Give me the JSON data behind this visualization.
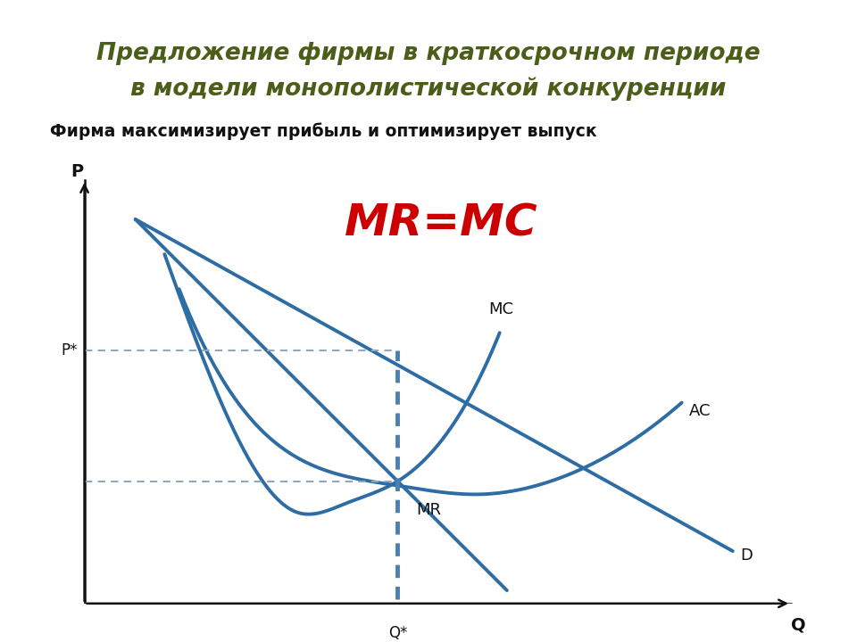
{
  "title_line1": "Предложение фирмы в краткосрочном периоде",
  "title_line2": "в модели монополистической конкуренции",
  "subtitle_text": "Фирма максимизирует прибыль и оптимизирует выпуск",
  "mr_mc_label": "MR=MC",
  "title_box_bg": "#dde5c8",
  "title_box_text_color": "#4a5e1a",
  "subtitle_color": "#111111",
  "mr_mc_color": "#cc0000",
  "curve_color": "#2e6da4",
  "axis_color": "#111111",
  "dash_color_h": "#90a8b8",
  "dash_color_v": "#4a80b0",
  "background_color": "#ffffff",
  "Q_star": 0.44,
  "P_star": 0.58,
  "MR_level": 0.28
}
